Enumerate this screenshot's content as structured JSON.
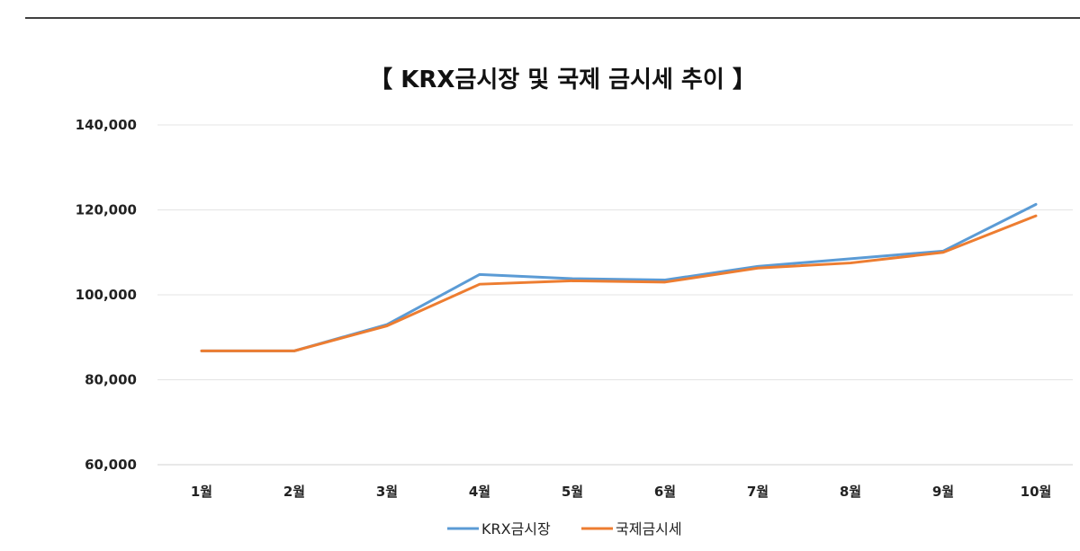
{
  "chart_data": {
    "type": "line",
    "title": "【 KRX금시장 및 국제 금시세 추이 】",
    "categories": [
      "1월",
      "2월",
      "3월",
      "4월",
      "5월",
      "6월",
      "7월",
      "8월",
      "9월",
      "10월"
    ],
    "series": [
      {
        "name": "KRX금시장",
        "color": "#5B9BD5",
        "values": [
          86800,
          86800,
          93000,
          104800,
          103800,
          103500,
          106700,
          108500,
          110300,
          121300
        ]
      },
      {
        "name": "국제금시세",
        "color": "#ED7D31",
        "values": [
          86800,
          86800,
          92700,
          102500,
          103300,
          103000,
          106300,
          107500,
          110000,
          118600
        ]
      }
    ],
    "ylim": [
      60000,
      140000
    ],
    "yticks": [
      "60,000",
      "80,000",
      "100,000",
      "120,000",
      "140,000"
    ],
    "ytick_values": [
      60000,
      80000,
      100000,
      120000,
      140000
    ],
    "xlabel": "",
    "ylabel": "",
    "grid": true,
    "legend": "bottom"
  }
}
